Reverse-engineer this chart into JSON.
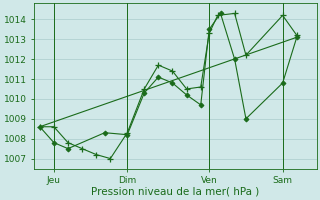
{
  "background_color": "#d0e8e8",
  "grid_color": "#aacccc",
  "line_color": "#1a6b1a",
  "marker_color": "#1a6b1a",
  "xlabel": "Pression niveau de la mer( hPa )",
  "ylim": [
    1006.5,
    1014.8
  ],
  "yticks": [
    1007,
    1008,
    1009,
    1010,
    1011,
    1012,
    1013,
    1014
  ],
  "xlim": [
    0,
    10.0
  ],
  "xtick_positions": [
    0.7,
    3.3,
    6.2,
    8.8
  ],
  "xtick_labels": [
    "Jeu",
    "Dim",
    "Ven",
    "Sam"
  ],
  "vline_positions": [
    0.7,
    3.3,
    6.2,
    8.8
  ],
  "series1_x": [
    0.2,
    0.7,
    1.2,
    1.7,
    2.2,
    2.7,
    3.3,
    3.9,
    4.4,
    4.9,
    5.4,
    5.9,
    6.2,
    6.5,
    7.1,
    7.5,
    8.8,
    9.3
  ],
  "series1_y": [
    1008.6,
    1008.6,
    1007.8,
    1007.5,
    1007.2,
    1007.0,
    1008.3,
    1010.5,
    1011.7,
    1011.4,
    1010.5,
    1010.6,
    1013.3,
    1014.2,
    1014.3,
    1012.2,
    1014.2,
    1013.2
  ],
  "series2_x": [
    0.2,
    0.7,
    1.2,
    2.5,
    3.3,
    3.9,
    4.4,
    4.9,
    5.4,
    5.9,
    6.2,
    6.6,
    7.1,
    7.5,
    8.8,
    9.3
  ],
  "series2_y": [
    1008.6,
    1007.8,
    1007.5,
    1008.3,
    1008.2,
    1010.3,
    1011.1,
    1010.8,
    1010.2,
    1009.7,
    1013.5,
    1014.3,
    1012.0,
    1009.0,
    1010.8,
    1013.1
  ],
  "series3_x": [
    0.2,
    9.3
  ],
  "series3_y": [
    1008.6,
    1013.1
  ]
}
